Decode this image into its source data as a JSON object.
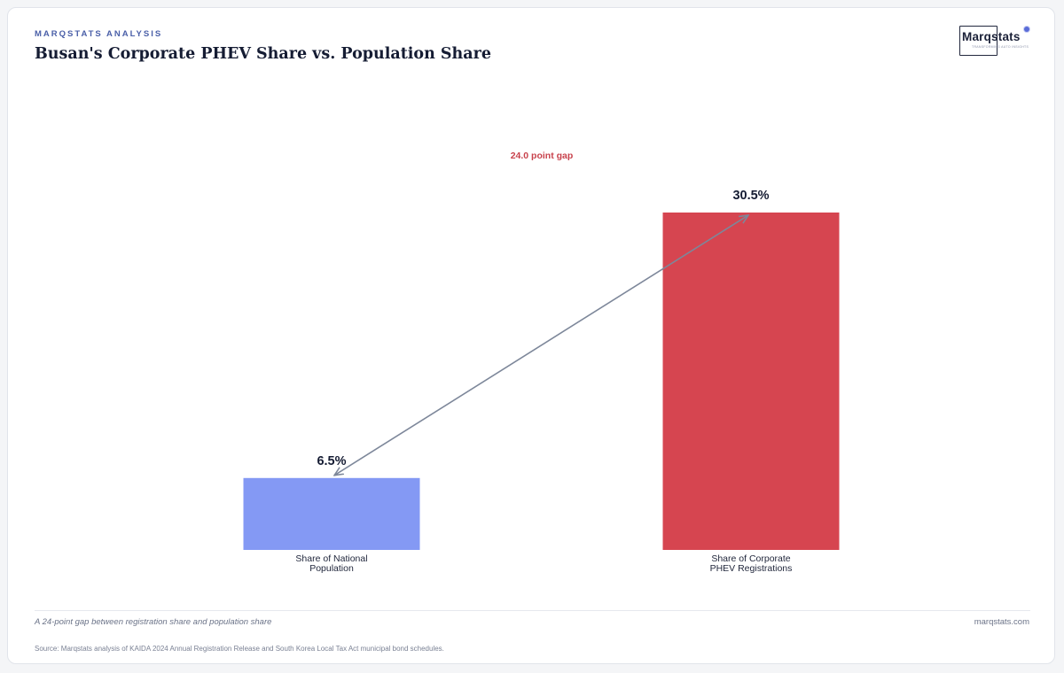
{
  "header": {
    "kicker": "MARQSTATS ANALYSIS",
    "title": "Busan's Corporate PHEV Share vs. Population Share"
  },
  "logo": {
    "name": "Marqstats",
    "tagline": "TRANSFORMING AUTO INSIGHTS"
  },
  "chart_data": {
    "type": "bar",
    "categories": [
      [
        "Share of National",
        "Population"
      ],
      [
        "Share of Corporate",
        "PHEV Registrations"
      ]
    ],
    "values": [
      6.5,
      30.5
    ],
    "value_labels": [
      "6.5%",
      "30.5%"
    ],
    "colors": [
      "#8499f4",
      "#d64550"
    ],
    "ylim": [
      0,
      30.5
    ],
    "grid": false,
    "legend": "none",
    "annotation": {
      "text": "24.0 point gap",
      "color": "#c8424c",
      "arrow_color": "#7d879a"
    }
  },
  "footer": {
    "takeaway": "A 24-point gap between registration share and population share",
    "site": "marqstats.com",
    "source": "Source: Marqstats analysis of KAIDA 2024 Annual Registration Release and South Korea Local Tax Act municipal bond schedules."
  }
}
